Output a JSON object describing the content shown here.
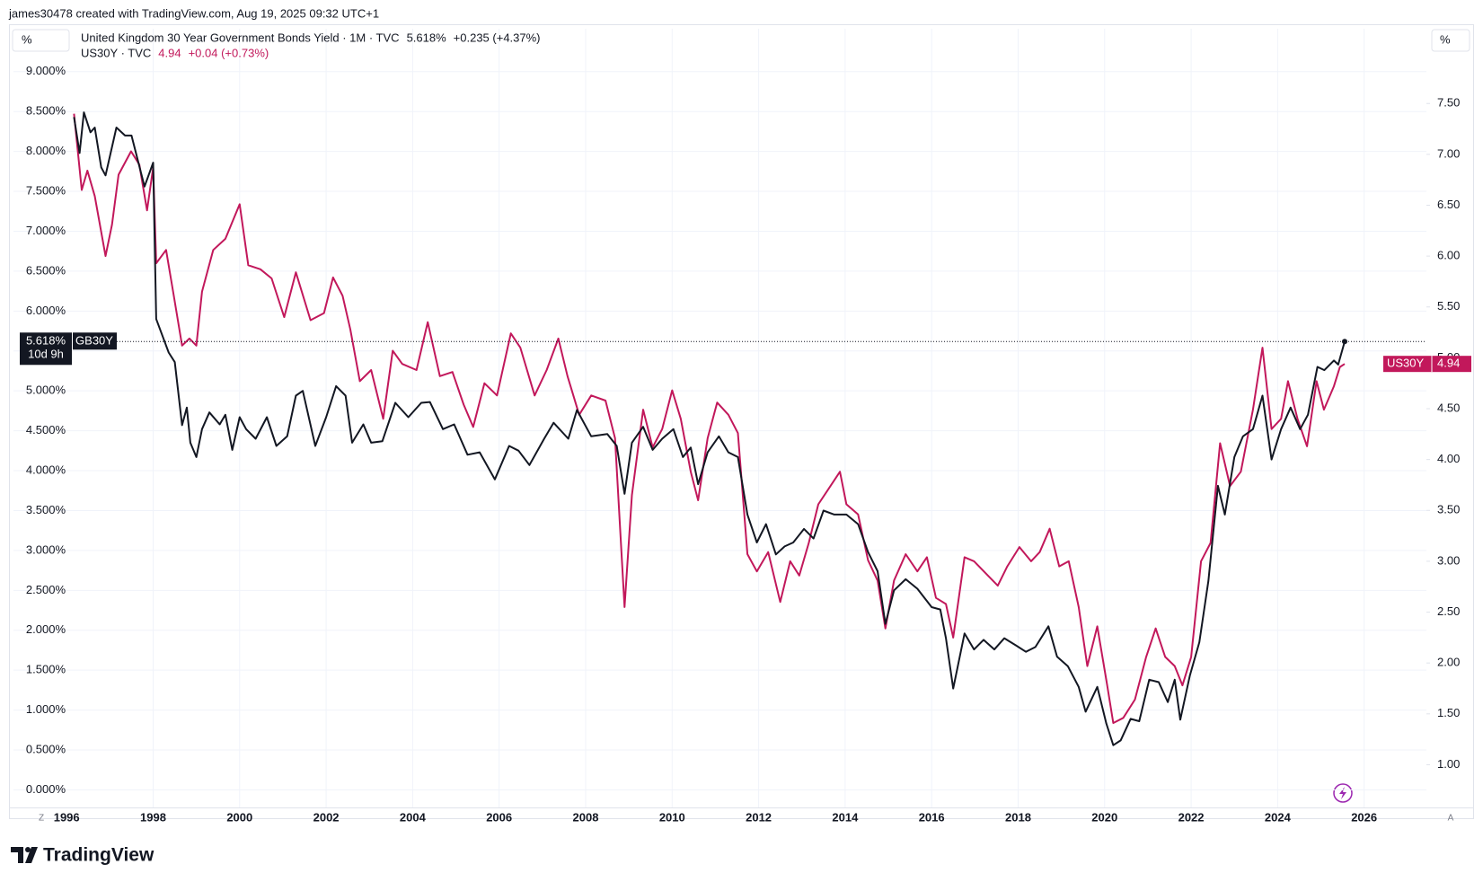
{
  "header": {
    "credit": "james30478 created with TradingView.com, Aug 19, 2025 09:32 UTC+1"
  },
  "footer": {
    "brand": "TradingView"
  },
  "chart_data": {
    "type": "line",
    "left_unit": "%",
    "right_unit": "%",
    "corner_left": "Z",
    "corner_right": "A",
    "grid": true,
    "xlim": [
      1996.1,
      2027.44
    ],
    "xticks": [
      1996,
      1998,
      2000,
      2002,
      2004,
      2006,
      2008,
      2010,
      2012,
      2014,
      2016,
      2018,
      2020,
      2022,
      2024,
      2026
    ],
    "ylim": [
      -0.22,
      9.2
    ],
    "yticks": [
      {
        "value": 0,
        "label": "0.000%"
      },
      {
        "value": 0.5,
        "label": "0.500%"
      },
      {
        "value": 1,
        "label": "1.000%"
      },
      {
        "value": 1.5,
        "label": "1.500%"
      },
      {
        "value": 2,
        "label": "2.000%"
      },
      {
        "value": 2.5,
        "label": "2.500%"
      },
      {
        "value": 3,
        "label": "3.000%"
      },
      {
        "value": 3.5,
        "label": "3.500%"
      },
      {
        "value": 4,
        "label": "4.000%"
      },
      {
        "value": 4.5,
        "label": "4.500%"
      },
      {
        "value": 5,
        "label": "5.000%"
      },
      {
        "value": 5.5,
        "label": "5.500%"
      },
      {
        "value": 6,
        "label": "6.000%"
      },
      {
        "value": 6.5,
        "label": "6.500%"
      },
      {
        "value": 7,
        "label": "7.000%"
      },
      {
        "value": 7.5,
        "label": "7.500%"
      },
      {
        "value": 8,
        "label": "8.000%"
      },
      {
        "value": 8.5,
        "label": "8.500%"
      },
      {
        "value": 9,
        "label": "9.000%"
      }
    ],
    "y2lim": [
      0.58,
      7.97
    ],
    "y2ticks": [
      {
        "value": 1,
        "label": "1.00"
      },
      {
        "value": 1.5,
        "label": "1.50"
      },
      {
        "value": 2,
        "label": "2.00"
      },
      {
        "value": 2.5,
        "label": "2.50"
      },
      {
        "value": 3,
        "label": "3.00"
      },
      {
        "value": 3.5,
        "label": "3.50"
      },
      {
        "value": 4,
        "label": "4.00"
      },
      {
        "value": 4.5,
        "label": "4.50"
      },
      {
        "value": 5,
        "label": "5.00"
      },
      {
        "value": 5.5,
        "label": "5.50"
      },
      {
        "value": 6,
        "label": "6.00"
      },
      {
        "value": 6.5,
        "label": "6.50"
      },
      {
        "value": 7,
        "label": "7.00"
      },
      {
        "value": 7.5,
        "label": "7.50"
      }
    ],
    "series": [
      {
        "name": "United Kingdom 30 Year Government Bonds Yield · 1M · TVC",
        "symbol": "GB30Y",
        "color": "#131722",
        "axis": "y",
        "last": {
          "value": 5.618,
          "label": "5.618%"
        },
        "change": "+0.235 (+4.37%)",
        "countdown": "10d 9h",
        "x": [
          1996.17,
          1996.3,
          1996.4,
          1996.55,
          1996.65,
          1996.8,
          1996.9,
          1997.15,
          1997.35,
          1997.5,
          1997.8,
          1998.0,
          1998.07,
          1998.36,
          1998.5,
          1998.67,
          1998.78,
          1998.86,
          1999.0,
          1999.13,
          1999.3,
          1999.54,
          1999.67,
          1999.83,
          2000.0,
          2000.15,
          2000.37,
          2000.63,
          2000.85,
          2001.1,
          2001.3,
          2001.46,
          2001.75,
          2002.0,
          2002.23,
          2002.45,
          2002.6,
          2002.86,
          2003.04,
          2003.3,
          2003.6,
          2003.9,
          2004.2,
          2004.4,
          2004.7,
          2004.96,
          2005.27,
          2005.55,
          2005.9,
          2006.23,
          2006.45,
          2006.7,
          2007.04,
          2007.26,
          2007.6,
          2007.8,
          2008.13,
          2008.5,
          2008.72,
          2008.9,
          2009.07,
          2009.33,
          2009.55,
          2009.77,
          2010.03,
          2010.25,
          2010.43,
          2010.6,
          2010.82,
          2011.08,
          2011.3,
          2011.52,
          2011.74,
          2011.96,
          2012.17,
          2012.4,
          2012.6,
          2012.8,
          2013.05,
          2013.27,
          2013.5,
          2013.75,
          2014.03,
          2014.3,
          2014.53,
          2014.75,
          2014.93,
          2015.13,
          2015.4,
          2015.67,
          2016.0,
          2016.2,
          2016.33,
          2016.5,
          2016.76,
          2016.98,
          2017.2,
          2017.45,
          2017.68,
          2017.95,
          2018.18,
          2018.4,
          2018.7,
          2018.9,
          2019.15,
          2019.4,
          2019.56,
          2019.83,
          2020.04,
          2020.2,
          2020.37,
          2020.6,
          2020.8,
          2021.03,
          2021.25,
          2021.46,
          2021.62,
          2021.75,
          2021.97,
          2022.19,
          2022.4,
          2022.62,
          2022.78,
          2023.0,
          2023.2,
          2023.43,
          2023.65,
          2023.86,
          2024.08,
          2024.3,
          2024.52,
          2024.7,
          2024.92,
          2025.08,
          2025.3,
          2025.4,
          2025.55
        ],
        "values": [
          8.43,
          7.98,
          8.49,
          8.24,
          8.3,
          7.8,
          7.7,
          8.3,
          8.2,
          8.2,
          7.56,
          7.86,
          5.9,
          5.48,
          5.36,
          4.57,
          4.79,
          4.35,
          4.17,
          4.52,
          4.73,
          4.58,
          4.7,
          4.26,
          4.67,
          4.52,
          4.4,
          4.67,
          4.31,
          4.43,
          4.94,
          5.0,
          4.31,
          4.67,
          5.06,
          4.94,
          4.35,
          4.58,
          4.35,
          4.37,
          4.85,
          4.67,
          4.85,
          4.86,
          4.52,
          4.58,
          4.2,
          4.23,
          3.89,
          4.31,
          4.25,
          4.07,
          4.4,
          4.6,
          4.4,
          4.76,
          4.43,
          4.46,
          4.31,
          3.71,
          4.35,
          4.55,
          4.26,
          4.4,
          4.52,
          4.17,
          4.29,
          3.83,
          4.23,
          4.43,
          4.23,
          4.17,
          3.45,
          3.1,
          3.33,
          2.95,
          3.05,
          3.1,
          3.27,
          3.15,
          3.5,
          3.45,
          3.45,
          3.33,
          2.98,
          2.74,
          2.08,
          2.5,
          2.64,
          2.52,
          2.29,
          2.26,
          1.9,
          1.27,
          1.96,
          1.76,
          1.88,
          1.76,
          1.9,
          1.81,
          1.73,
          1.79,
          2.05,
          1.67,
          1.55,
          1.29,
          0.98,
          1.29,
          0.83,
          0.56,
          0.62,
          0.89,
          0.86,
          1.38,
          1.35,
          1.1,
          1.38,
          0.88,
          1.43,
          1.85,
          2.62,
          3.81,
          3.45,
          4.17,
          4.43,
          4.52,
          4.94,
          4.14,
          4.52,
          4.79,
          4.52,
          4.7,
          5.3,
          5.26,
          5.38,
          5.33,
          5.618
        ]
      },
      {
        "name": "US30Y · TVC",
        "symbol": "US30Y",
        "color": "#c2185b",
        "axis": "y2",
        "last": 4.94,
        "change": "+0.04 (+0.73%)",
        "x": [
          1996.17,
          1996.35,
          1996.48,
          1996.65,
          1996.9,
          1997.05,
          1997.2,
          1997.49,
          1997.68,
          1997.86,
          1998.0,
          1998.07,
          1998.3,
          1998.47,
          1998.67,
          1998.84,
          1999.0,
          1999.13,
          1999.39,
          1999.67,
          2000.0,
          2000.2,
          2000.48,
          2000.74,
          2001.03,
          2001.3,
          2001.64,
          2001.95,
          2002.16,
          2002.38,
          2002.56,
          2002.78,
          2003.04,
          2003.32,
          2003.54,
          2003.76,
          2004.09,
          2004.35,
          2004.63,
          2004.92,
          2005.18,
          2005.4,
          2005.66,
          2005.95,
          2006.27,
          2006.49,
          2006.82,
          2007.1,
          2007.37,
          2007.58,
          2007.85,
          2008.13,
          2008.46,
          2008.68,
          2008.9,
          2009.07,
          2009.33,
          2009.55,
          2009.77,
          2010.0,
          2010.2,
          2010.43,
          2010.6,
          2010.82,
          2011.04,
          2011.3,
          2011.52,
          2011.74,
          2011.96,
          2012.22,
          2012.5,
          2012.73,
          2012.94,
          2013.16,
          2013.38,
          2013.6,
          2013.88,
          2014.03,
          2014.3,
          2014.53,
          2014.75,
          2014.93,
          2015.13,
          2015.4,
          2015.67,
          2015.89,
          2016.1,
          2016.33,
          2016.5,
          2016.76,
          2016.98,
          2017.3,
          2017.53,
          2017.75,
          2018.03,
          2018.3,
          2018.5,
          2018.73,
          2018.95,
          2019.17,
          2019.4,
          2019.6,
          2019.83,
          2020.04,
          2020.2,
          2020.43,
          2020.7,
          2020.96,
          2021.18,
          2021.4,
          2021.62,
          2021.8,
          2022.0,
          2022.23,
          2022.45,
          2022.67,
          2022.9,
          2023.15,
          2023.43,
          2023.65,
          2023.86,
          2024.08,
          2024.24,
          2024.46,
          2024.68,
          2024.9,
          2025.07,
          2025.3,
          2025.44,
          2025.55
        ],
        "values": [
          7.4,
          6.65,
          6.84,
          6.59,
          6.0,
          6.31,
          6.8,
          7.03,
          6.9,
          6.45,
          6.87,
          5.93,
          6.06,
          5.63,
          5.12,
          5.19,
          5.12,
          5.65,
          6.06,
          6.17,
          6.51,
          5.91,
          5.87,
          5.78,
          5.4,
          5.84,
          5.37,
          5.44,
          5.79,
          5.61,
          5.28,
          4.77,
          4.88,
          4.4,
          5.07,
          4.94,
          4.88,
          5.35,
          4.82,
          4.86,
          4.54,
          4.32,
          4.75,
          4.63,
          5.24,
          5.1,
          4.63,
          4.88,
          5.19,
          4.82,
          4.44,
          4.63,
          4.58,
          4.21,
          2.55,
          3.65,
          4.49,
          4.12,
          4.3,
          4.68,
          4.4,
          3.88,
          3.6,
          4.21,
          4.56,
          4.44,
          4.26,
          3.07,
          2.9,
          3.09,
          2.6,
          3.0,
          2.86,
          3.18,
          3.56,
          3.7,
          3.88,
          3.56,
          3.46,
          3.01,
          2.81,
          2.34,
          2.81,
          3.07,
          2.9,
          3.04,
          2.64,
          2.58,
          2.25,
          3.04,
          3.0,
          2.86,
          2.76,
          2.95,
          3.14,
          3.0,
          3.09,
          3.32,
          2.95,
          3.0,
          2.55,
          1.97,
          2.36,
          1.83,
          1.41,
          1.46,
          1.64,
          2.06,
          2.34,
          2.06,
          1.97,
          1.78,
          2.06,
          3.0,
          3.18,
          4.16,
          3.74,
          3.88,
          4.49,
          5.1,
          4.3,
          4.4,
          4.77,
          4.4,
          4.13,
          4.77,
          4.49,
          4.72,
          4.91,
          4.94
        ]
      }
    ]
  }
}
